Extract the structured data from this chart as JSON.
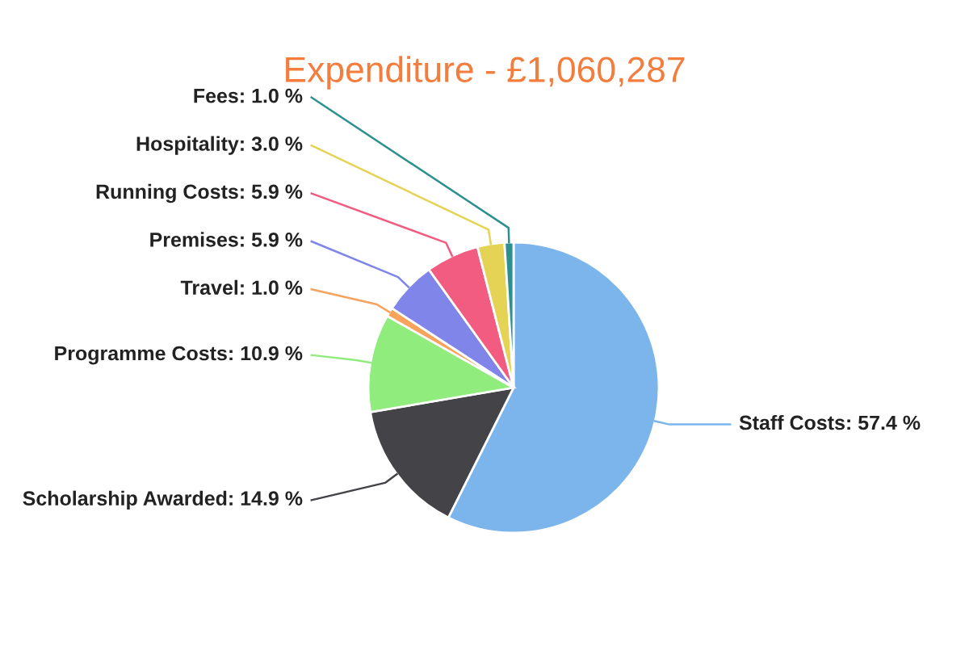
{
  "chart_data": {
    "type": "pie",
    "title": "Expenditure - £1,060,287",
    "categories": [
      "Staff Costs",
      "Scholarship Awarded",
      "Programme Costs",
      "Travel",
      "Premises",
      "Running Costs",
      "Hospitality",
      "Fees"
    ],
    "values": [
      57.4,
      14.9,
      10.9,
      1.0,
      5.9,
      5.9,
      3.0,
      1.0
    ],
    "value_labels": [
      "57.4 %",
      "14.9 %",
      "10.9 %",
      "1.0 %",
      "5.9 %",
      "5.9 %",
      "3.0 %",
      "1.0 %"
    ],
    "colors": [
      "#7cb5ec",
      "#434348",
      "#90ed7d",
      "#f7a35c",
      "#8085e9",
      "#f15c80",
      "#e4d354",
      "#2b908f"
    ]
  }
}
